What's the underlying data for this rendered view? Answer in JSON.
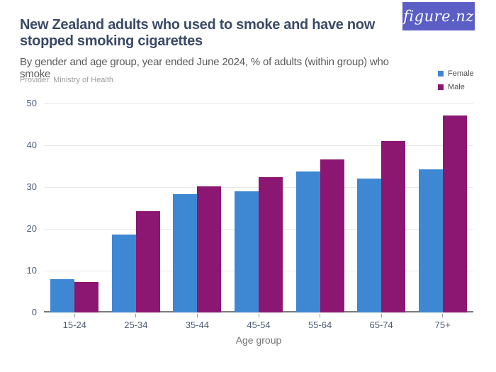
{
  "header": {
    "title": "New Zealand adults who used to smoke and have now stopped smoking cigarettes",
    "subtitle": "By gender and age group, year ended June 2024, % of adults (within group) who smoke",
    "provider": "Provider: Ministry of Health",
    "logo_text": "figure.nz"
  },
  "colors": {
    "female": "#3e87d3",
    "male": "#8b1772",
    "logo_bg": "#5a5ec5",
    "title_text": "#3a4a66",
    "grid": "#e8e8e8",
    "axis_text": "#4c5c77"
  },
  "chart_data": {
    "type": "bar",
    "title": "New Zealand adults who used to smoke and have now stopped smoking cigarettes",
    "subtitle": "By gender and age group, year ended June 2024, % of adults (within group) who smoke",
    "categories": [
      "15-24",
      "25-34",
      "35-44",
      "45-54",
      "55-64",
      "65-74",
      "75+"
    ],
    "series": [
      {
        "name": "Female",
        "color": "#3e87d3",
        "values": [
          8.0,
          18.6,
          28.3,
          29.0,
          33.8,
          32.1,
          34.2
        ]
      },
      {
        "name": "Male",
        "color": "#8b1772",
        "values": [
          7.3,
          24.3,
          30.1,
          32.4,
          36.6,
          41.1,
          47.1
        ]
      }
    ],
    "xlabel": "Age group",
    "ylabel": "",
    "ylim": [
      0,
      50
    ],
    "yticks": [
      0,
      10,
      20,
      30,
      40,
      50
    ],
    "grid": true,
    "legend_position": "top-right"
  }
}
